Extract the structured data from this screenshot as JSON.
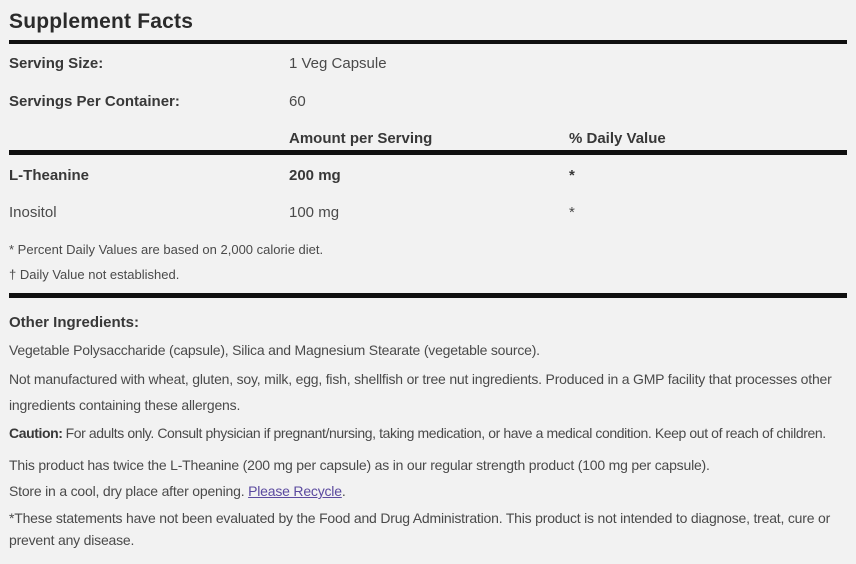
{
  "title": "Supplement Facts",
  "colors": {
    "background": "#f2f2f2",
    "heading_text": "#2b2b2b",
    "body_text": "#4a4a4a",
    "rule": "#101010",
    "link": "#5b4a9f"
  },
  "serving_info": [
    {
      "label": "Serving Size:",
      "value": "1 Veg Capsule"
    },
    {
      "label": "Servings Per Container:",
      "value": "60"
    }
  ],
  "columns": {
    "amount": "Amount per Serving",
    "daily_value": "% Daily Value"
  },
  "ingredients": [
    {
      "name": "L-Theanine",
      "amount": "200 mg",
      "daily_value": "*"
    },
    {
      "name": "Inositol",
      "amount": "100 mg",
      "daily_value": "*"
    }
  ],
  "footnotes": [
    "* Percent Daily Values are based on 2,000 calorie diet.",
    "† Daily Value not established."
  ],
  "other_ingredients": {
    "label": "Other Ingredients:",
    "text": "Vegetable Polysaccharide (capsule), Silica and Magnesium Stearate (vegetable source)."
  },
  "allergen_note": "Not manufactured with wheat, gluten, soy, milk, egg, fish, shellfish or tree nut ingredients. Produced in a GMP facility that processes other ingredients containing these allergens.",
  "caution": {
    "label": "Caution:",
    "text": "For adults only. Consult physician if pregnant/nursing, taking medication, or have a medical condition. Keep out of reach of children."
  },
  "strength_note": "This product has twice the L-Theanine (200 mg per capsule) as in our regular strength product (100 mg per capsule).",
  "storage": {
    "text": "Store in a cool, dry place after opening.",
    "link_label": "Please Recycle",
    "suffix": "."
  },
  "disclaimer": "*These statements have not been evaluated by the Food and Drug Administration. This product is not intended to diagnose, treat, cure or prevent any disease."
}
